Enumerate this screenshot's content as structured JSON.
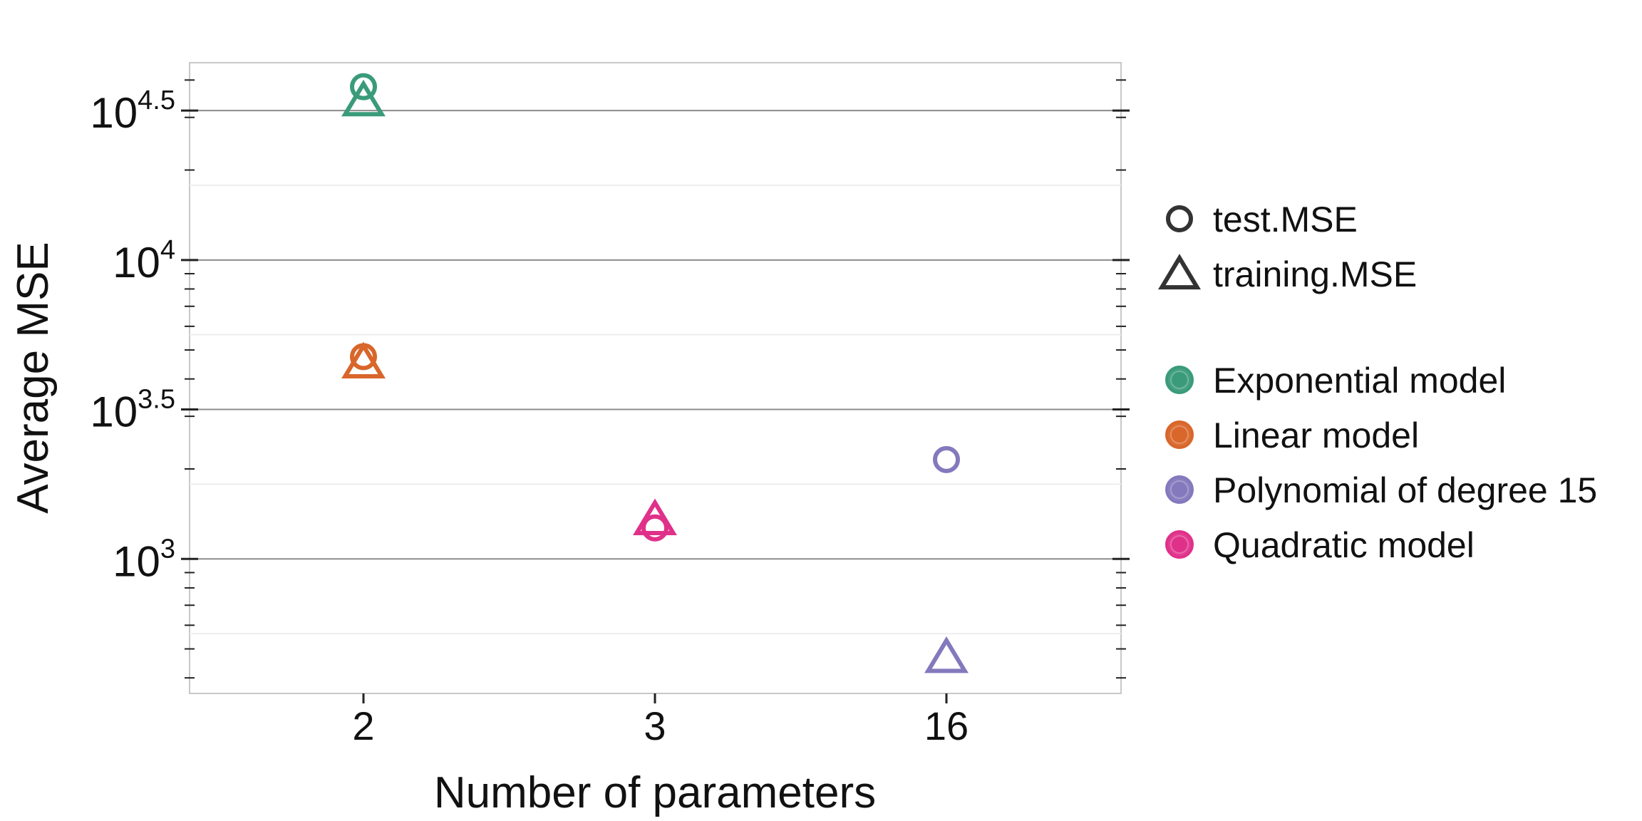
{
  "chart_data": {
    "type": "scatter",
    "xlabel": "Number of parameters",
    "ylabel": "Average MSE",
    "y_scale": "log10",
    "ylim_log10": [
      2.55,
      4.66
    ],
    "categories": [
      "2",
      "3",
      "16"
    ],
    "y_ticks": [
      {
        "base": "10",
        "exp": "3",
        "log10": 3.0
      },
      {
        "base": "10",
        "exp": "3.5",
        "log10": 3.5
      },
      {
        "base": "10",
        "exp": "4",
        "log10": 4.0
      },
      {
        "base": "10",
        "exp": "4.5",
        "log10": 4.5
      }
    ],
    "grid": true,
    "legend_position": "right",
    "shape_legend": [
      {
        "label": "test.MSE",
        "shape": "circle"
      },
      {
        "label": "training.MSE",
        "shape": "triangle"
      }
    ],
    "series": [
      {
        "name": "Exponential model",
        "color": "#3a9b7a",
        "points": [
          {
            "x": "2",
            "metric": "test.MSE",
            "y": 38000
          },
          {
            "x": "2",
            "metric": "training.MSE",
            "y": 33500
          }
        ]
      },
      {
        "name": "Linear model",
        "color": "#d9662a",
        "points": [
          {
            "x": "2",
            "metric": "test.MSE",
            "y": 4750
          },
          {
            "x": "2",
            "metric": "training.MSE",
            "y": 4450
          }
        ]
      },
      {
        "name": "Polynomial of degree 15",
        "color": "#8479bd",
        "points": [
          {
            "x": "16",
            "metric": "test.MSE",
            "y": 2150
          },
          {
            "x": "16",
            "metric": "training.MSE",
            "y": 460
          }
        ]
      },
      {
        "name": "Quadratic model",
        "color": "#e0318a",
        "points": [
          {
            "x": "3",
            "metric": "test.MSE",
            "y": 1270
          },
          {
            "x": "3",
            "metric": "training.MSE",
            "y": 1330
          }
        ]
      }
    ]
  }
}
